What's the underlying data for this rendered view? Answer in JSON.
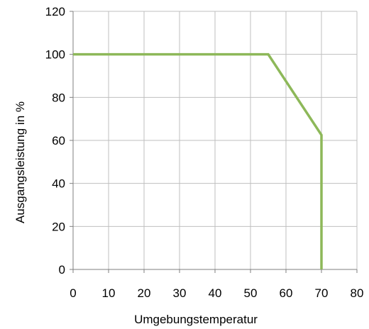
{
  "chart_data": {
    "type": "line",
    "title": "",
    "xlabel": "Umgebungstemperatur",
    "ylabel": "Ausgangsleistung in %",
    "xlim": [
      0,
      80
    ],
    "ylim": [
      0,
      120
    ],
    "x_ticks": [
      0,
      10,
      20,
      30,
      40,
      50,
      60,
      70,
      80
    ],
    "y_ticks": [
      0,
      20,
      40,
      60,
      80,
      100,
      120
    ],
    "grid": true,
    "legend": "none",
    "series": [
      {
        "color": "#8DB859",
        "points": [
          {
            "x": 0,
            "y": 100
          },
          {
            "x": 55,
            "y": 100
          },
          {
            "x": 70,
            "y": 62.5
          },
          {
            "x": 70,
            "y": 0
          }
        ]
      }
    ]
  }
}
